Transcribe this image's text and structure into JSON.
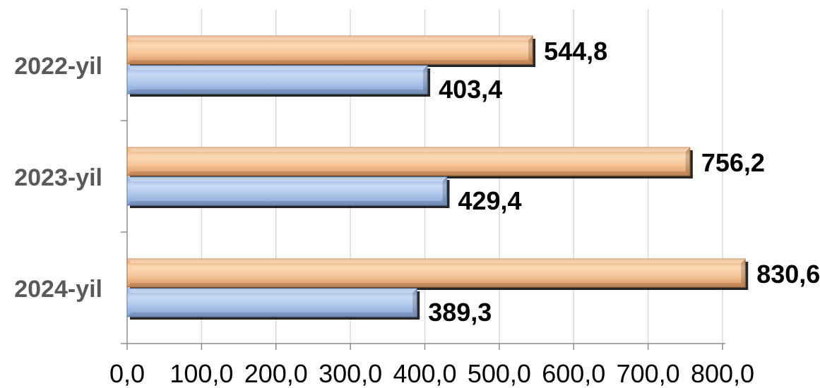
{
  "chart_data": {
    "type": "bar",
    "orientation": "horizontal",
    "categories": [
      "2022-yil",
      "2023-yil",
      "2024-yil"
    ],
    "series": [
      {
        "values": [
          544.8,
          756.2,
          830.6
        ],
        "labels": [
          "544,8",
          "756,2",
          "830,6"
        ],
        "color": "#f6c08e"
      },
      {
        "values": [
          403.4,
          429.4,
          389.3
        ],
        "labels": [
          "403,4",
          "429,4",
          "389,3"
        ],
        "color": "#a9c4ea"
      }
    ],
    "xlim": [
      0,
      800
    ],
    "x_ticks": [
      0,
      100,
      200,
      300,
      400,
      500,
      600,
      700,
      800
    ],
    "x_tick_labels": [
      "0,0",
      "100,0",
      "200,0",
      "300,0",
      "400,0",
      "500,0",
      "600,0",
      "700,0",
      "800,0"
    ],
    "grid": "vertical",
    "legend": "none"
  }
}
